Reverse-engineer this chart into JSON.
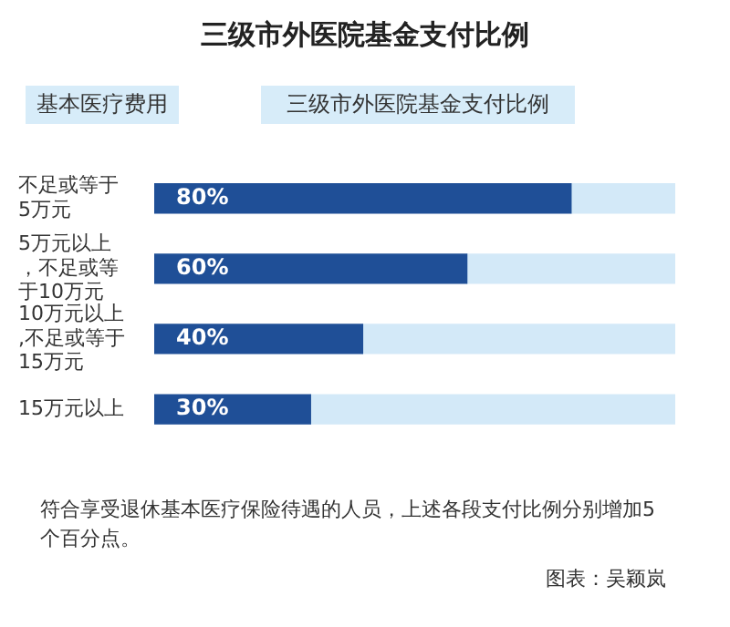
{
  "chart_data": {
    "type": "bar",
    "orientation": "horizontal",
    "stacked": true,
    "title": "三级市外医院基金支付比例",
    "ylabel": "基本医疗费用",
    "xlabel": "三级市外医院基金支付比例",
    "categories": [
      "不足或等于5万元",
      "5万元以上，不足或等于10万元",
      "10万元以上,不足或等于15万元",
      "15万元以上"
    ],
    "series": [
      {
        "color": "#1f4f97",
        "values": [
          80,
          60,
          40,
          30
        ],
        "value_labels": [
          "80%",
          "60%",
          "40%",
          "30%"
        ]
      },
      {
        "color": "#d3e9f8",
        "values": [
          20,
          40,
          60,
          70
        ]
      }
    ],
    "xlim": [
      0,
      100
    ],
    "tick_labels": "y",
    "grid": false,
    "legend": false,
    "annotations": [
      "符合享受退休基本医疗保险待遇的人员，上述各段支付比例分别增加5个百分点。",
      "图表：吴颖岚"
    ]
  }
}
